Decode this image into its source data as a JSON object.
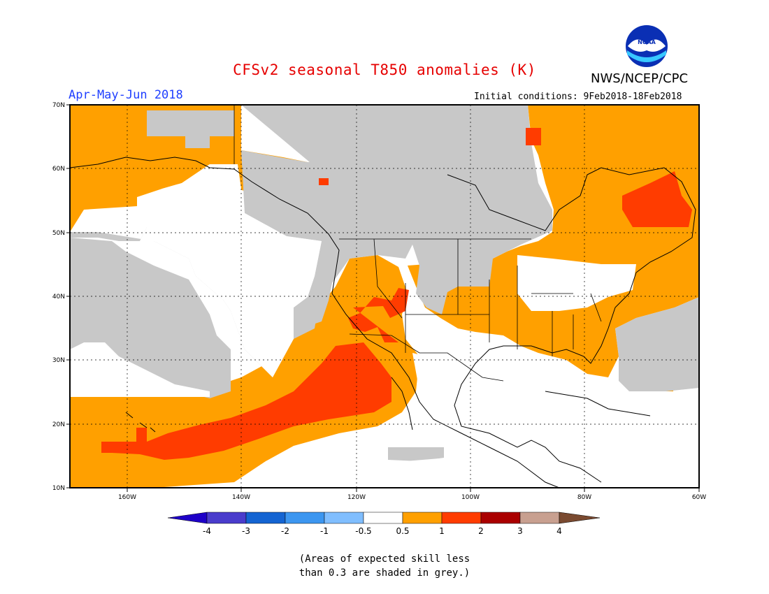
{
  "header": {
    "title": "CFSv2 seasonal T850 anomalies (K)",
    "agency": "NWS/NCEP/CPC",
    "logo_text": "NOAA",
    "season": "Apr-May-Jun 2018",
    "initial_conditions": "Initial conditions: 9Feb2018-18Feb2018"
  },
  "axes": {
    "lon_labels": [
      "160W",
      "140W",
      "120W",
      "100W",
      "80W",
      "60W"
    ],
    "lat_labels": [
      "70N",
      "60N",
      "50N",
      "40N",
      "30N",
      "20N",
      "10N"
    ],
    "lon_range": [
      -170,
      -60
    ],
    "lat_range": [
      10,
      70
    ]
  },
  "colorbar": {
    "labels": [
      "-4",
      "-3",
      "-2",
      "-1",
      "-0.5",
      "0.5",
      "1",
      "2",
      "3",
      "4"
    ],
    "colors": [
      "#1e00c8",
      "#4a3ccc",
      "#1464d2",
      "#3c96f0",
      "#80beff",
      "#ffffff",
      "#ffa000",
      "#ff3c00",
      "#aa0000",
      "#c8a090",
      "#7a4a30"
    ]
  },
  "legend_colors": {
    "skill_grey": "#c8c8c8",
    "anomaly_0_5_to_1": "#ffa000",
    "anomaly_1_to_2": "#ff3c00",
    "neutral": "#ffffff"
  },
  "footnote": {
    "line1": "(Areas of expected skill less",
    "line2": "than 0.3 are shaded in grey.)"
  }
}
